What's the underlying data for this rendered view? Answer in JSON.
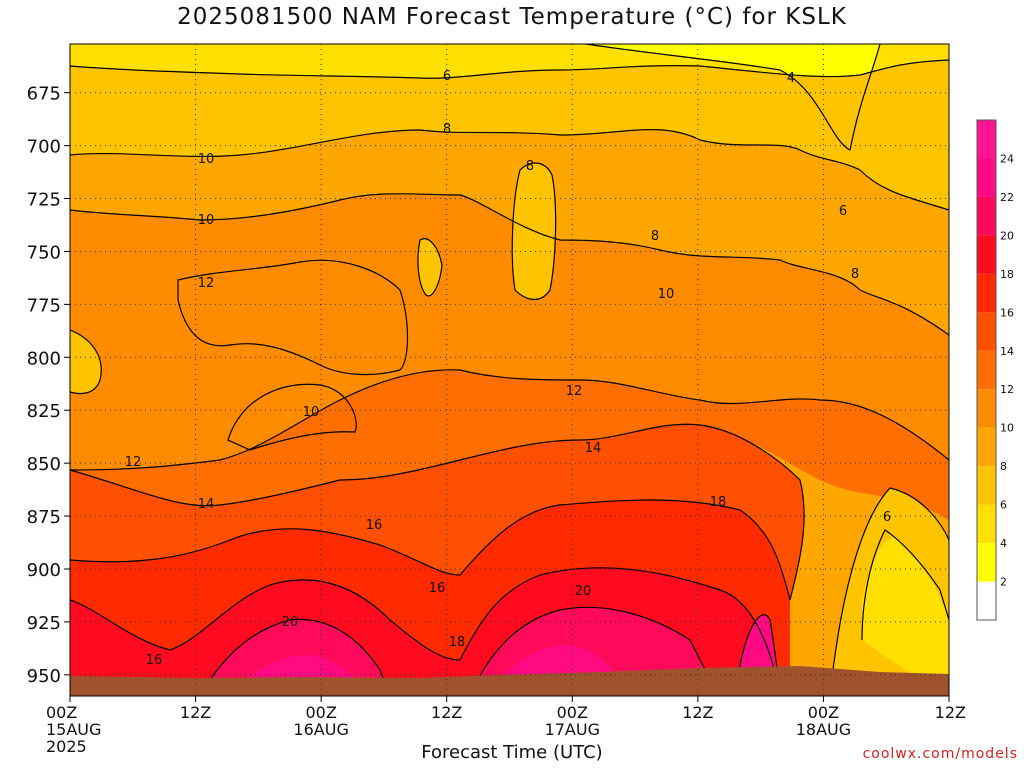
{
  "title": "2025081500 NAM Forecast Temperature (°C) for KSLK",
  "chart_data": {
    "type": "heatmap",
    "subtype": "time-pressure cross-section with filled contours",
    "title": "2025081500 NAM Forecast Temperature (°C) for KSLK",
    "xlabel": "Forecast Time (UTC)",
    "ylabel": "",
    "x_ticks": [
      {
        "hours": 0,
        "line1": "00Z",
        "line2": "15AUG",
        "line3": "2025"
      },
      {
        "hours": 12,
        "line1": "12Z",
        "line2": "",
        "line3": ""
      },
      {
        "hours": 24,
        "line1": "00Z",
        "line2": "16AUG",
        "line3": ""
      },
      {
        "hours": 36,
        "line1": "12Z",
        "line2": "",
        "line3": ""
      },
      {
        "hours": 48,
        "line1": "00Z",
        "line2": "17AUG",
        "line3": ""
      },
      {
        "hours": 60,
        "line1": "12Z",
        "line2": "",
        "line3": ""
      },
      {
        "hours": 72,
        "line1": "00Z",
        "line2": "18AUG",
        "line3": ""
      },
      {
        "hours": 84,
        "line1": "12Z",
        "line2": "",
        "line3": ""
      }
    ],
    "xlim": [
      0,
      84
    ],
    "y_ticks": [
      "675",
      "700",
      "725",
      "750",
      "775",
      "800",
      "825",
      "850",
      "875",
      "900",
      "925",
      "950"
    ],
    "y_values": [
      675,
      700,
      725,
      750,
      775,
      800,
      825,
      850,
      875,
      900,
      925,
      950
    ],
    "ylim": [
      652,
      960
    ],
    "y_inverted": true,
    "grid": true,
    "colorbar": {
      "labels": [
        "2",
        "4",
        "6",
        "8",
        "10",
        "12",
        "14",
        "16",
        "18",
        "20",
        "22",
        "24"
      ],
      "colors": [
        "#ffffff",
        "#ffff00",
        "#ffe000",
        "#ffc400",
        "#ffa700",
        "#ff8b00",
        "#ff6e00",
        "#ff4f00",
        "#ff2a00",
        "#ff0a1e",
        "#ff0a5a",
        "#ff0a82",
        "#ff1493"
      ]
    },
    "contour_labels": [
      "6",
      "4",
      "8",
      "8",
      "10",
      "8",
      "6",
      "12",
      "8",
      "10",
      "10",
      "12",
      "14",
      "10",
      "12",
      "14",
      "16",
      "18",
      "16",
      "20",
      "20",
      "18",
      "16",
      "6"
    ],
    "terrain_color": "#a0522d"
  },
  "watermark": "coolwx.com/models"
}
